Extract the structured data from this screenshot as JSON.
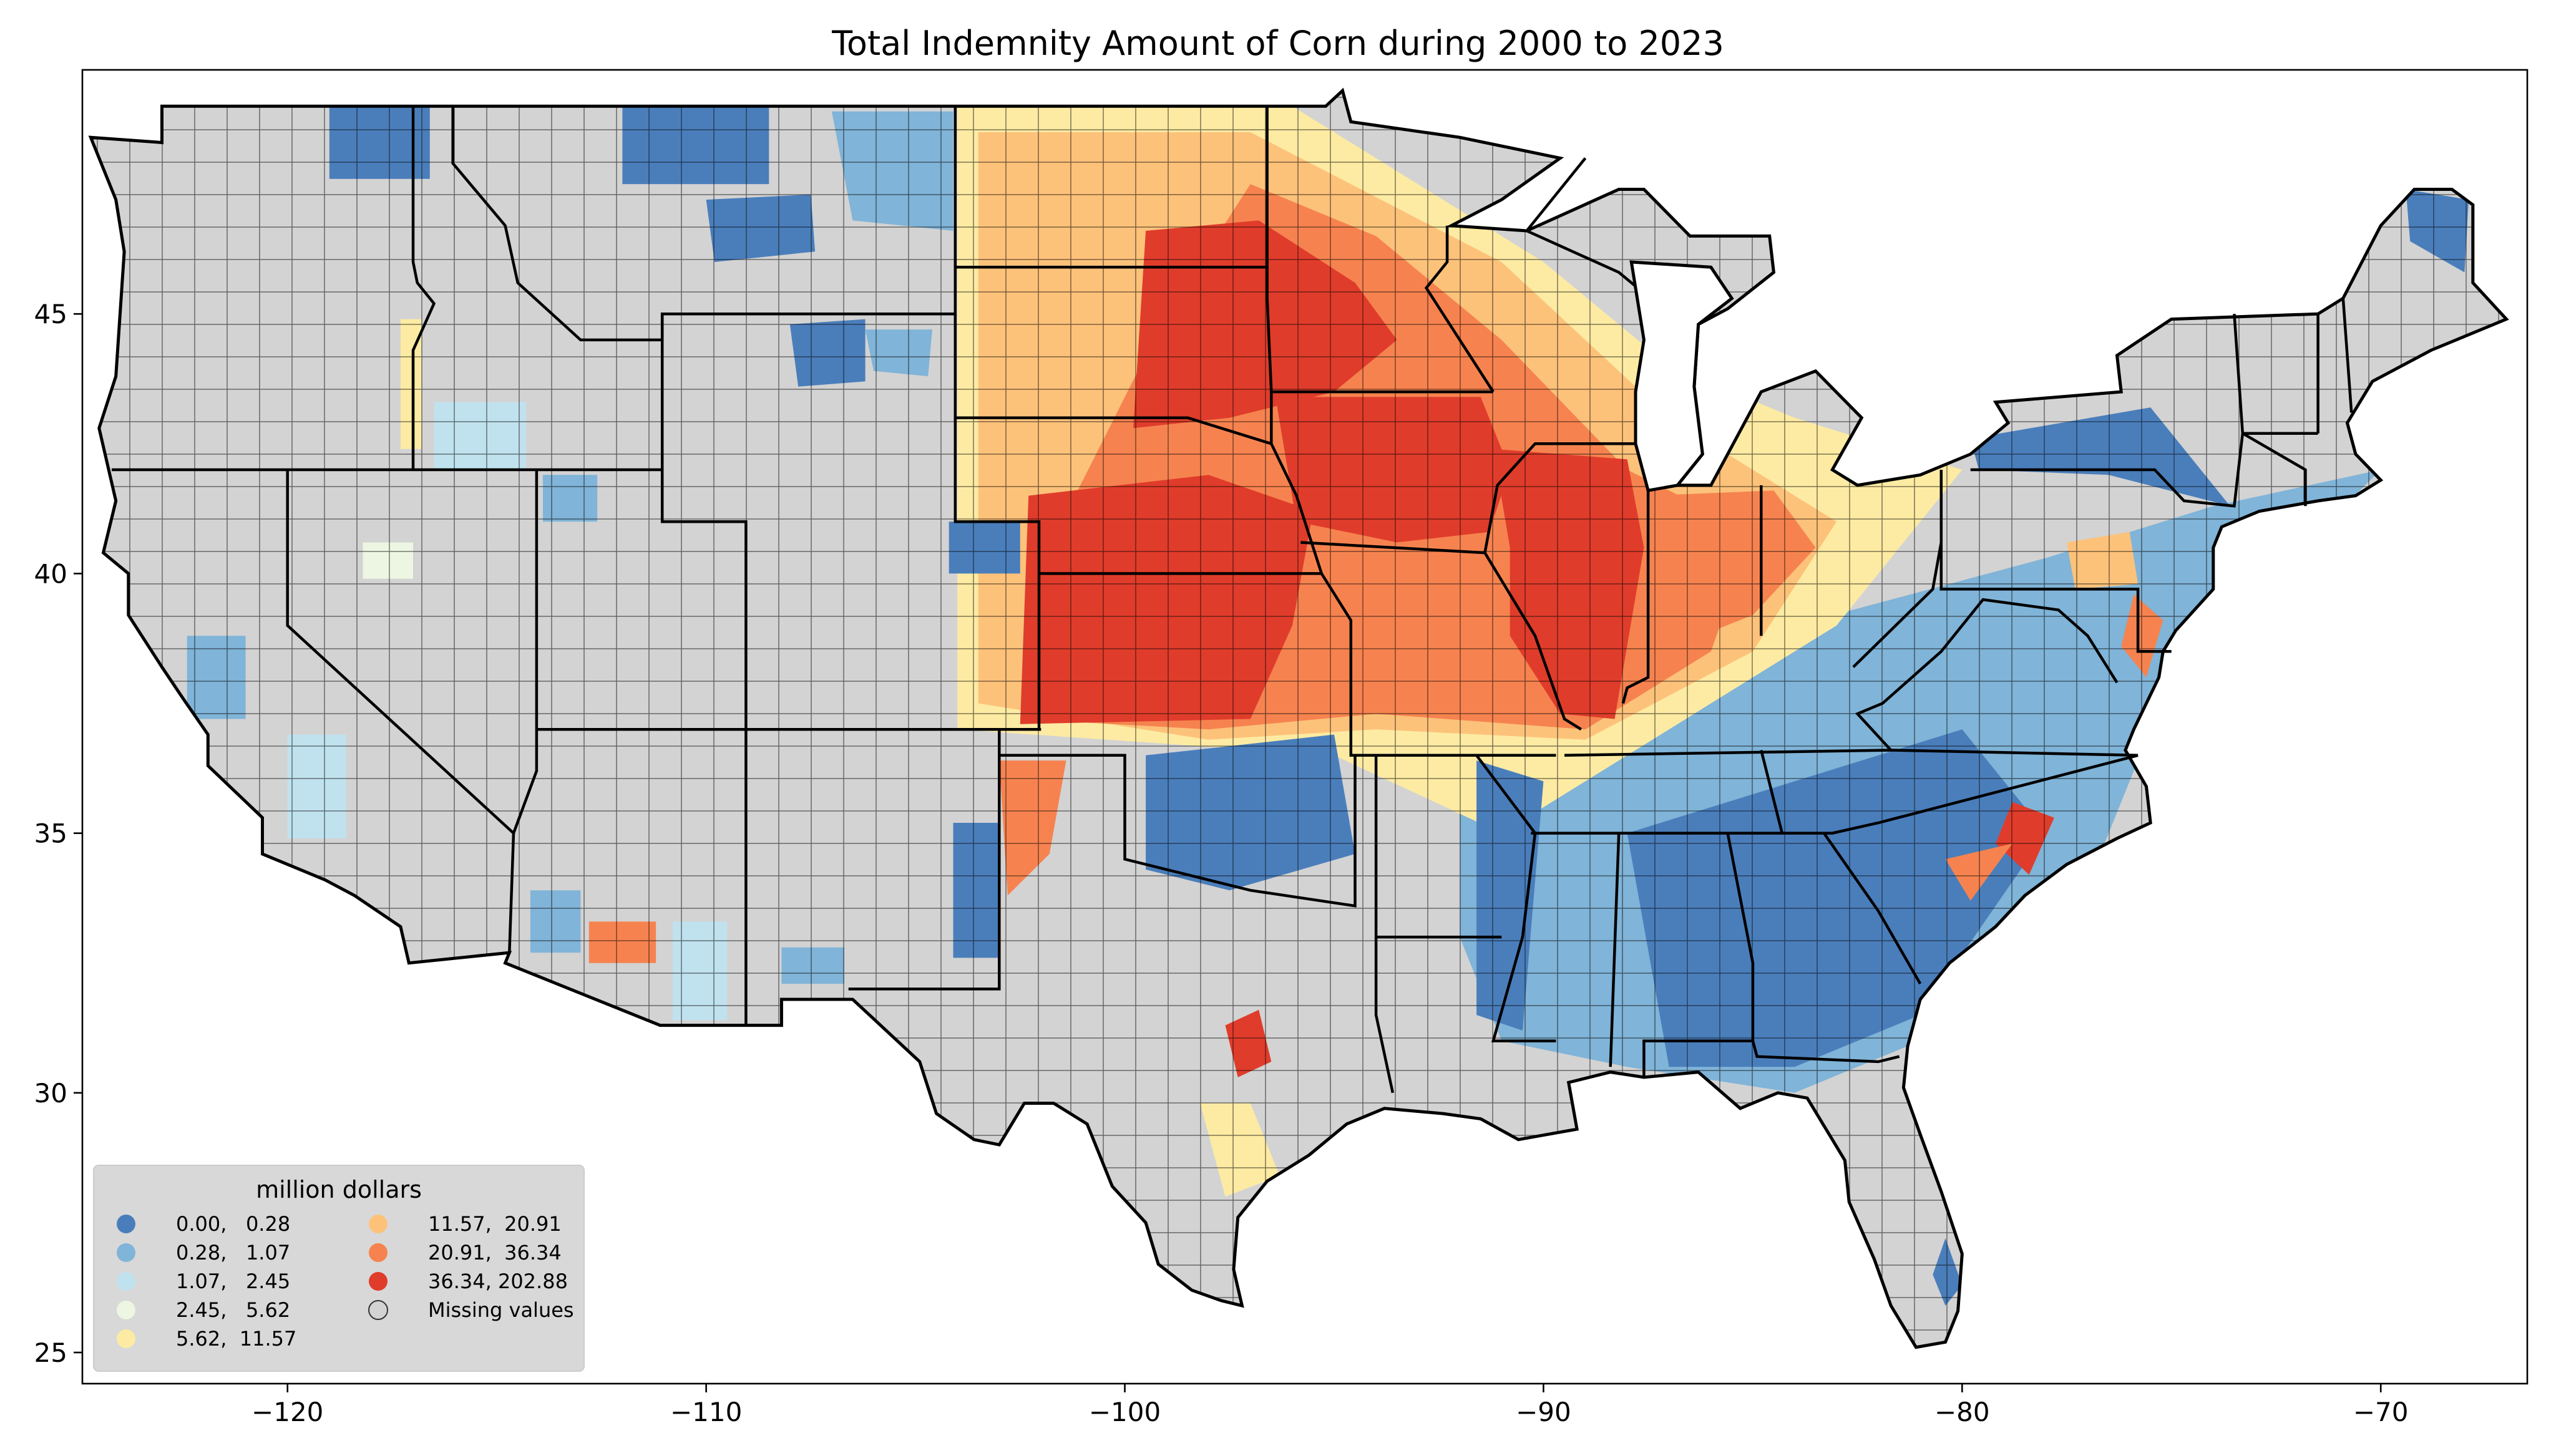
{
  "title": "Total Indemnity Amount of Corn during 2000 to 2023",
  "x_ticks": [
    "−120",
    "−110",
    "−100",
    "−90",
    "−80",
    "−70"
  ],
  "y_ticks": [
    "25",
    "30",
    "35",
    "40",
    "45"
  ],
  "x_range": [
    -124.9,
    -66.5
  ],
  "y_range": [
    24.4,
    49.7
  ],
  "colors": {
    "c1": "#4a7ebb",
    "c2": "#80b4d8",
    "c3": "#c0e2ee",
    "c4": "#edf6e2",
    "c5": "#fdeba3",
    "c6": "#fdc27a",
    "c7": "#f6834f",
    "c8": "#e03c2b",
    "missing": "#d3d3d3"
  },
  "legend": {
    "title": "million dollars",
    "items": [
      {
        "label": "0.00,   0.28",
        "color": "#4a7ebb"
      },
      {
        "label": "0.28,   1.07",
        "color": "#80b4d8"
      },
      {
        "label": "1.07,   2.45",
        "color": "#c0e2ee"
      },
      {
        "label": "2.45,   5.62",
        "color": "#edf6e2"
      },
      {
        "label": "5.62,  11.57",
        "color": "#fdeba3"
      },
      {
        "label": "11.57,  20.91",
        "color": "#fdc27a"
      },
      {
        "label": "20.91,  36.34",
        "color": "#f6834f"
      },
      {
        "label": "36.34, 202.88",
        "color": "#e03c2b"
      },
      {
        "label": "Missing values",
        "color": "#d3d3d3"
      }
    ]
  }
}
